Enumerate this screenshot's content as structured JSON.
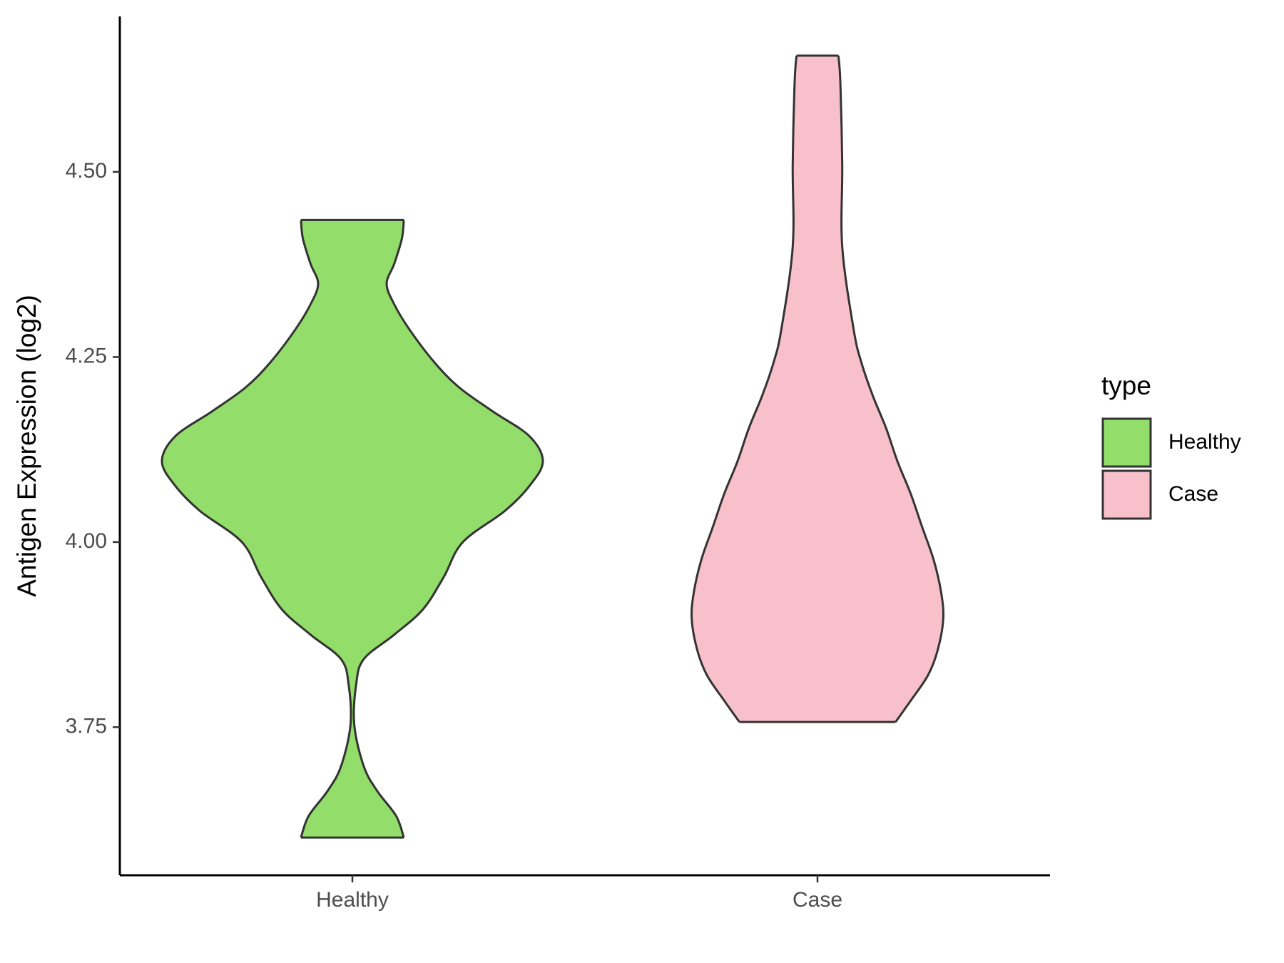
{
  "chart_data": {
    "type": "violin",
    "ylabel": "Antigen Expression (log2)",
    "categories": [
      "Healthy",
      "Case"
    ],
    "legend_title": "type",
    "ylim": [
      3.55,
      4.71
    ],
    "yticks": [
      {
        "value": 3.75,
        "label": "3.75"
      },
      {
        "value": 4.0,
        "label": "4.00"
      },
      {
        "value": 4.25,
        "label": "4.25"
      },
      {
        "value": 4.5,
        "label": "4.50"
      }
    ],
    "legend": "right",
    "series": [
      {
        "name": "Healthy",
        "color": "#93dd6a",
        "y": [
          3.601,
          3.63,
          3.664,
          3.697,
          3.753,
          3.808,
          3.842,
          3.875,
          3.909,
          3.953,
          4.0,
          4.042,
          4.076,
          4.109,
          4.143,
          4.176,
          4.209,
          4.243,
          4.287,
          4.321,
          4.349,
          4.376,
          4.41,
          4.435
        ],
        "density": [
          0.27,
          0.23,
          0.13,
          0.06,
          0.01,
          0.02,
          0.06,
          0.22,
          0.37,
          0.48,
          0.58,
          0.8,
          0.93,
          1.0,
          0.93,
          0.74,
          0.56,
          0.43,
          0.3,
          0.22,
          0.18,
          0.22,
          0.26,
          0.27
        ]
      },
      {
        "name": "Case",
        "color": "#f7c0cb",
        "y": [
          3.757,
          3.786,
          3.82,
          3.853,
          3.895,
          3.931,
          3.976,
          4.02,
          4.065,
          4.109,
          4.154,
          4.198,
          4.243,
          4.287,
          4.399,
          4.51,
          4.621,
          4.657
        ],
        "density": [
          0.41,
          0.49,
          0.58,
          0.63,
          0.66,
          0.65,
          0.61,
          0.55,
          0.49,
          0.42,
          0.36,
          0.29,
          0.23,
          0.19,
          0.13,
          0.13,
          0.12,
          0.11
        ]
      }
    ]
  }
}
